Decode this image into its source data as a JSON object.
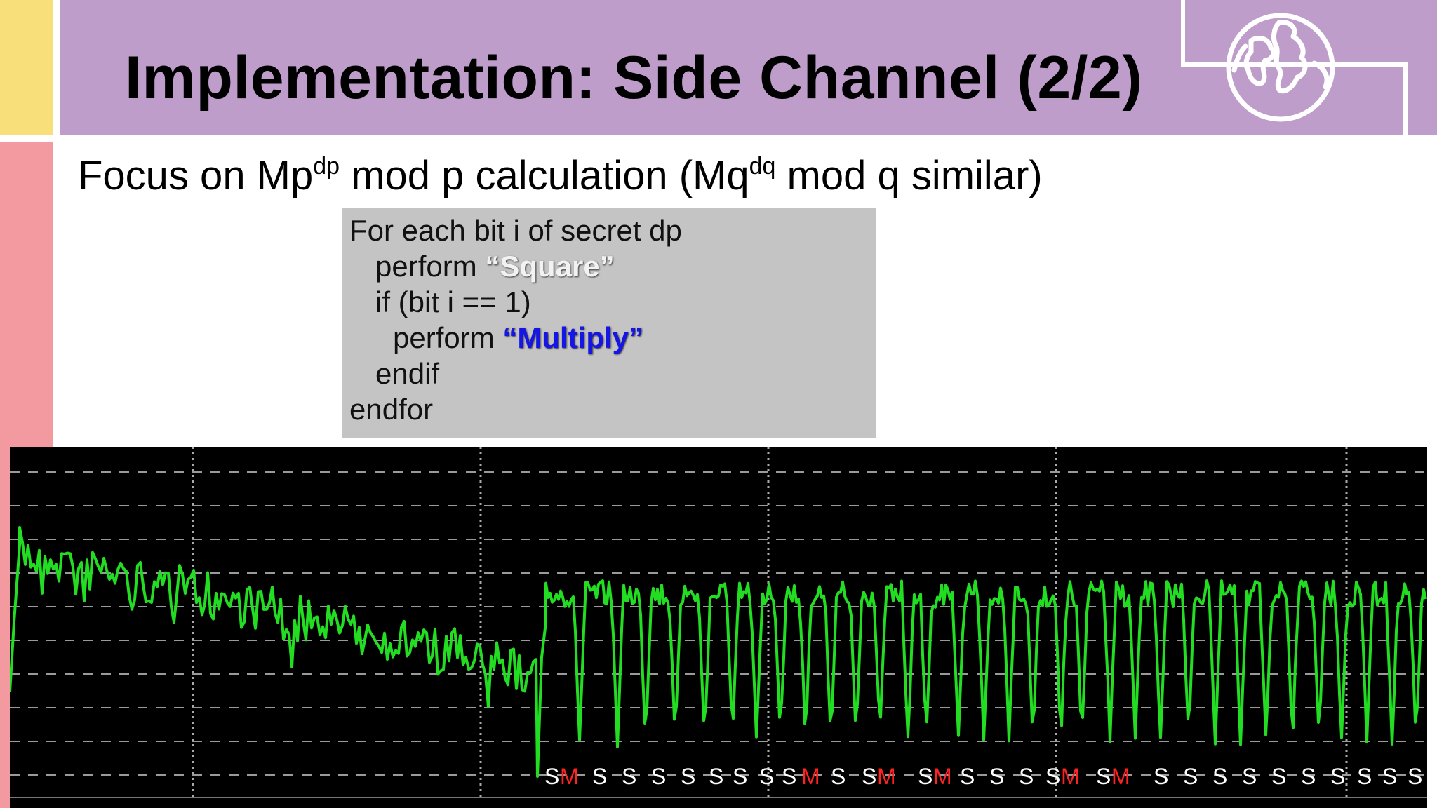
{
  "slide": {
    "title": "Implementation: Side Channel (2/2)",
    "subtitle_parts": {
      "a": "Focus on Mp",
      "a_sup": "dp",
      "b": " mod p calculation (Mq",
      "b_sup": "dq",
      "c": " mod q similar)"
    }
  },
  "code": {
    "line1": "For each bit i of secret dp",
    "line2_prefix": "perform ",
    "line2_keyword": "“Square”",
    "line3": "if (bit i == 1)",
    "line4_prefix": "perform ",
    "line4_keyword": "“Multiply”",
    "line5": "endif",
    "line6": "endfor"
  },
  "colors": {
    "header": "#bf9dcb",
    "left_yellow": "#f9df7a",
    "left_pink": "#f29aa0",
    "code_bg": "#c4c4c4",
    "trace": "#22dd22",
    "multiply_mark": "#ff2222",
    "square_mark": "#ffffff",
    "multiply_keyword": "#1515e6"
  },
  "icons": {
    "logo": "globe-icon"
  },
  "chart_data": {
    "type": "line",
    "title": "",
    "xlabel": "",
    "ylabel": "",
    "grid": true,
    "operation_sequence": [
      "S",
      "M",
      "S",
      "S",
      "S",
      "S",
      "S",
      "S",
      "S",
      "S",
      "M",
      "S",
      "S",
      "M",
      "S",
      "M",
      "S",
      "S",
      "S",
      "S",
      "M",
      "S",
      "M",
      "S",
      "S",
      "S",
      "S",
      "S",
      "S",
      "S",
      "S",
      "S",
      "S"
    ]
  }
}
